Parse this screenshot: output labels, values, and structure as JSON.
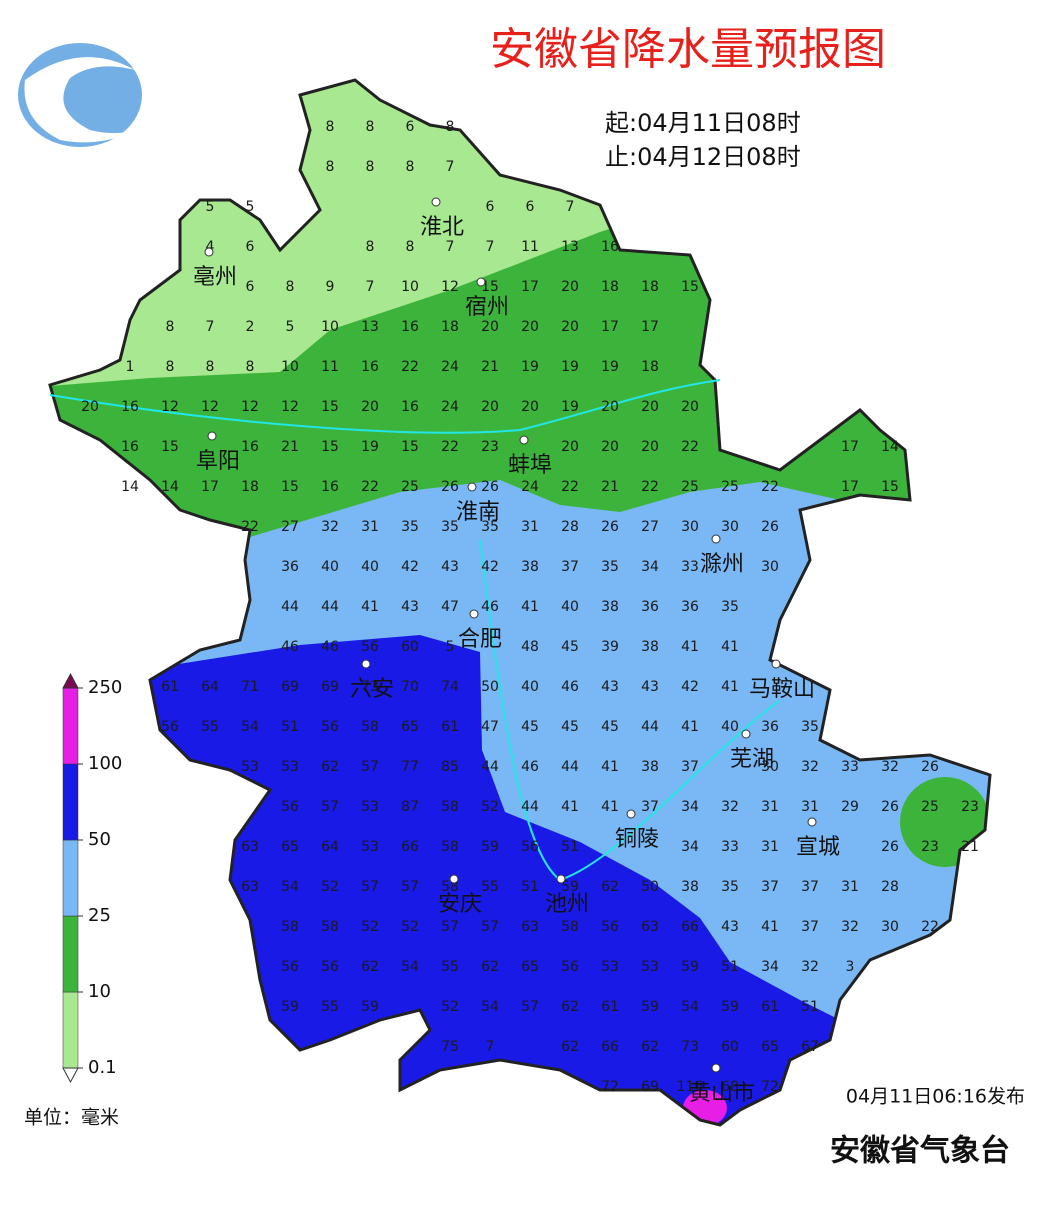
{
  "header": {
    "title": "安徽省降水量预报图",
    "start": "起:04月11日08时",
    "end": "止:04月12日08时"
  },
  "cities": [
    "淮北",
    "亳州",
    "宿州",
    "阜阳",
    "蚌埠",
    "淮南",
    "滁州",
    "合肥",
    "六安",
    "马鞍山",
    "芜湖",
    "铜陵",
    "宣城",
    "安庆",
    "池州",
    "黄山市"
  ],
  "grid_values": [
    [
      null,
      null,
      null,
      null,
      null,
      null,
      8,
      8,
      6,
      8,
      null,
      null,
      null,
      null,
      null,
      null,
      null,
      null,
      null,
      null,
      null,
      null,
      null
    ],
    [
      null,
      null,
      null,
      null,
      null,
      null,
      8,
      8,
      8,
      7,
      null,
      null,
      null,
      null,
      null,
      null,
      null,
      null,
      null,
      null,
      null,
      null,
      null
    ],
    [
      null,
      null,
      null,
      5,
      5,
      null,
      null,
      null,
      null,
      null,
      6,
      6,
      7,
      null,
      null,
      null,
      null,
      null,
      null,
      null,
      null,
      null,
      null
    ],
    [
      null,
      null,
      null,
      4,
      6,
      null,
      null,
      8,
      8,
      7,
      7,
      11,
      13,
      16,
      null,
      null,
      null,
      null,
      null,
      null,
      null,
      null,
      null
    ],
    [
      null,
      null,
      null,
      null,
      6,
      8,
      9,
      7,
      10,
      12,
      15,
      17,
      20,
      18,
      18,
      15,
      null,
      null,
      null,
      null,
      null,
      null,
      null
    ],
    [
      null,
      null,
      8,
      7,
      2,
      5,
      10,
      13,
      16,
      18,
      20,
      20,
      20,
      17,
      17,
      null,
      null,
      null,
      null,
      null,
      null,
      null,
      null
    ],
    [
      null,
      1,
      8,
      8,
      8,
      10,
      11,
      16,
      22,
      24,
      21,
      19,
      19,
      19,
      18,
      null,
      null,
      null,
      null,
      null,
      null,
      null,
      null
    ],
    [
      20,
      16,
      12,
      12,
      12,
      12,
      15,
      20,
      16,
      24,
      20,
      20,
      19,
      20,
      20,
      20,
      null,
      null,
      null,
      null,
      null,
      null,
      null
    ],
    [
      null,
      16,
      15,
      null,
      16,
      21,
      15,
      19,
      15,
      22,
      23,
      null,
      20,
      20,
      20,
      22,
      null,
      null,
      null,
      17,
      14,
      null,
      null
    ],
    [
      null,
      14,
      14,
      17,
      18,
      15,
      16,
      22,
      25,
      26,
      26,
      24,
      22,
      21,
      22,
      25,
      25,
      22,
      null,
      17,
      15,
      null,
      null
    ],
    [
      null,
      null,
      null,
      null,
      22,
      27,
      32,
      31,
      35,
      35,
      35,
      31,
      28,
      26,
      27,
      30,
      30,
      26,
      null,
      null,
      null,
      null,
      null
    ],
    [
      null,
      null,
      null,
      null,
      null,
      36,
      40,
      40,
      42,
      43,
      42,
      38,
      37,
      35,
      34,
      33,
      null,
      30,
      null,
      null,
      null,
      null,
      null
    ],
    [
      null,
      null,
      null,
      null,
      null,
      44,
      44,
      41,
      43,
      47,
      46,
      41,
      40,
      38,
      36,
      36,
      35,
      null,
      null,
      null,
      null,
      null,
      null
    ],
    [
      null,
      null,
      null,
      null,
      null,
      46,
      46,
      56,
      60,
      5,
      null,
      48,
      45,
      39,
      38,
      41,
      41,
      null,
      null,
      null,
      null,
      null,
      null
    ],
    [
      null,
      null,
      61,
      64,
      71,
      69,
      69,
      73,
      70,
      74,
      50,
      40,
      46,
      43,
      43,
      42,
      41,
      null,
      null,
      null,
      null,
      null,
      null
    ],
    [
      null,
      null,
      56,
      55,
      54,
      51,
      56,
      58,
      65,
      61,
      47,
      45,
      45,
      45,
      44,
      41,
      40,
      36,
      35,
      null,
      null,
      null,
      null
    ],
    [
      null,
      null,
      null,
      null,
      53,
      53,
      62,
      57,
      77,
      85,
      44,
      46,
      44,
      41,
      38,
      37,
      null,
      30,
      32,
      33,
      32,
      26,
      null
    ],
    [
      null,
      null,
      null,
      null,
      null,
      56,
      57,
      53,
      87,
      58,
      52,
      44,
      41,
      41,
      37,
      34,
      32,
      31,
      31,
      29,
      26,
      25,
      23
    ],
    [
      null,
      null,
      null,
      null,
      63,
      65,
      64,
      53,
      66,
      58,
      59,
      56,
      51,
      null,
      null,
      34,
      33,
      31,
      null,
      null,
      26,
      23,
      21
    ],
    [
      null,
      null,
      null,
      null,
      63,
      54,
      52,
      57,
      57,
      58,
      55,
      51,
      59,
      62,
      50,
      38,
      35,
      37,
      37,
      31,
      28,
      null,
      null
    ],
    [
      null,
      null,
      null,
      null,
      null,
      58,
      58,
      52,
      52,
      57,
      57,
      63,
      58,
      56,
      63,
      66,
      43,
      41,
      37,
      32,
      30,
      22,
      null
    ],
    [
      null,
      null,
      null,
      null,
      null,
      56,
      56,
      62,
      54,
      55,
      62,
      65,
      56,
      53,
      53,
      59,
      51,
      34,
      32,
      3,
      null,
      null,
      null
    ],
    [
      null,
      null,
      null,
      null,
      null,
      59,
      55,
      59,
      null,
      52,
      54,
      57,
      62,
      61,
      59,
      54,
      59,
      61,
      51,
      null,
      null,
      null,
      null
    ],
    [
      null,
      null,
      null,
      null,
      null,
      null,
      null,
      null,
      null,
      75,
      7,
      null,
      62,
      66,
      62,
      73,
      60,
      65,
      67,
      null,
      null,
      null,
      null
    ],
    [
      null,
      null,
      null,
      null,
      null,
      null,
      null,
      null,
      null,
      null,
      null,
      null,
      null,
      72,
      69,
      116,
      68,
      72,
      null,
      null,
      null,
      null,
      null
    ]
  ],
  "legend": {
    "ticks": [
      0.1,
      10,
      25,
      50,
      100,
      250
    ],
    "colors": [
      "#a8e890",
      "#3cb43c",
      "#7ab8f5",
      "#1a1ae6",
      "#e61ee6"
    ],
    "unit": "单位：毫米"
  },
  "footer": {
    "published": "04月11日06:16发布",
    "publisher": "安徽省气象台"
  }
}
